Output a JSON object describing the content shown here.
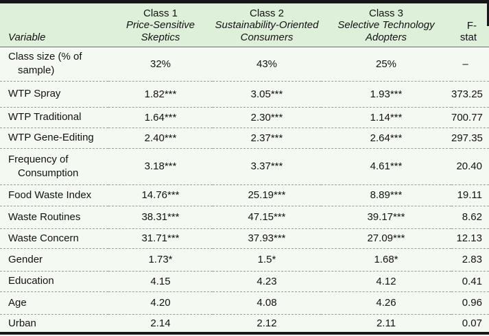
{
  "table": {
    "header": {
      "variable_label": "Variable",
      "classes": [
        {
          "title": "Class 1",
          "subtitle": "Price-Sensitive\nSkeptics"
        },
        {
          "title": "Class 2",
          "subtitle": "Sustainability-Oriented\nConsumers"
        },
        {
          "title": "Class 3",
          "subtitle": "Selective Technology\nAdopters"
        }
      ],
      "fstat_label": "F-stat"
    },
    "rows": [
      {
        "variable": "Class size (% of\nsample)",
        "class1": "32%",
        "class2": "43%",
        "class3": "25%",
        "fstat": "–"
      },
      {
        "variable": "WTP Spray",
        "class1": "1.82***",
        "class2": "3.05***",
        "class3": "1.93***",
        "fstat": "373.25"
      },
      {
        "variable": "WTP Traditional",
        "class1": "1.64***",
        "class2": "2.30***",
        "class3": "1.14***",
        "fstat": "700.77"
      },
      {
        "variable": "WTP Gene-Editing",
        "class1": "2.40***",
        "class2": "2.37***",
        "class3": "2.64***",
        "fstat": "297.35"
      },
      {
        "variable": "Frequency of\nConsumption",
        "class1": "3.18***",
        "class2": "3.37***",
        "class3": "4.61***",
        "fstat": "20.40"
      },
      {
        "variable": "Food Waste Index",
        "class1": "14.76***",
        "class2": "25.19***",
        "class3": "8.89***",
        "fstat": "19.11"
      },
      {
        "variable": "Waste Routines",
        "class1": "38.31***",
        "class2": "47.15***",
        "class3": "39.17***",
        "fstat": "8.62"
      },
      {
        "variable": "Waste Concern",
        "class1": "31.71***",
        "class2": "37.93***",
        "class3": "27.09***",
        "fstat": "12.13"
      },
      {
        "variable": "Gender",
        "class1": "1.73*",
        "class2": "1.5*",
        "class3": "1.68*",
        "fstat": "2.83"
      },
      {
        "variable": "Education",
        "class1": "4.15",
        "class2": "4.23",
        "class3": "4.12",
        "fstat": "0.41"
      },
      {
        "variable": "Age",
        "class1": "4.20",
        "class2": "4.08",
        "class3": "4.26",
        "fstat": "0.96"
      },
      {
        "variable": "Urban",
        "class1": "2.14",
        "class2": "2.12",
        "class3": "2.11",
        "fstat": "0.07"
      }
    ]
  },
  "colors": {
    "header_bg": "#def0da",
    "body_bg": "#f4faf2",
    "border_dark": "#171717",
    "header_rule": "#6b6b6b",
    "row_separator": "#979d97",
    "text": "#121212"
  }
}
